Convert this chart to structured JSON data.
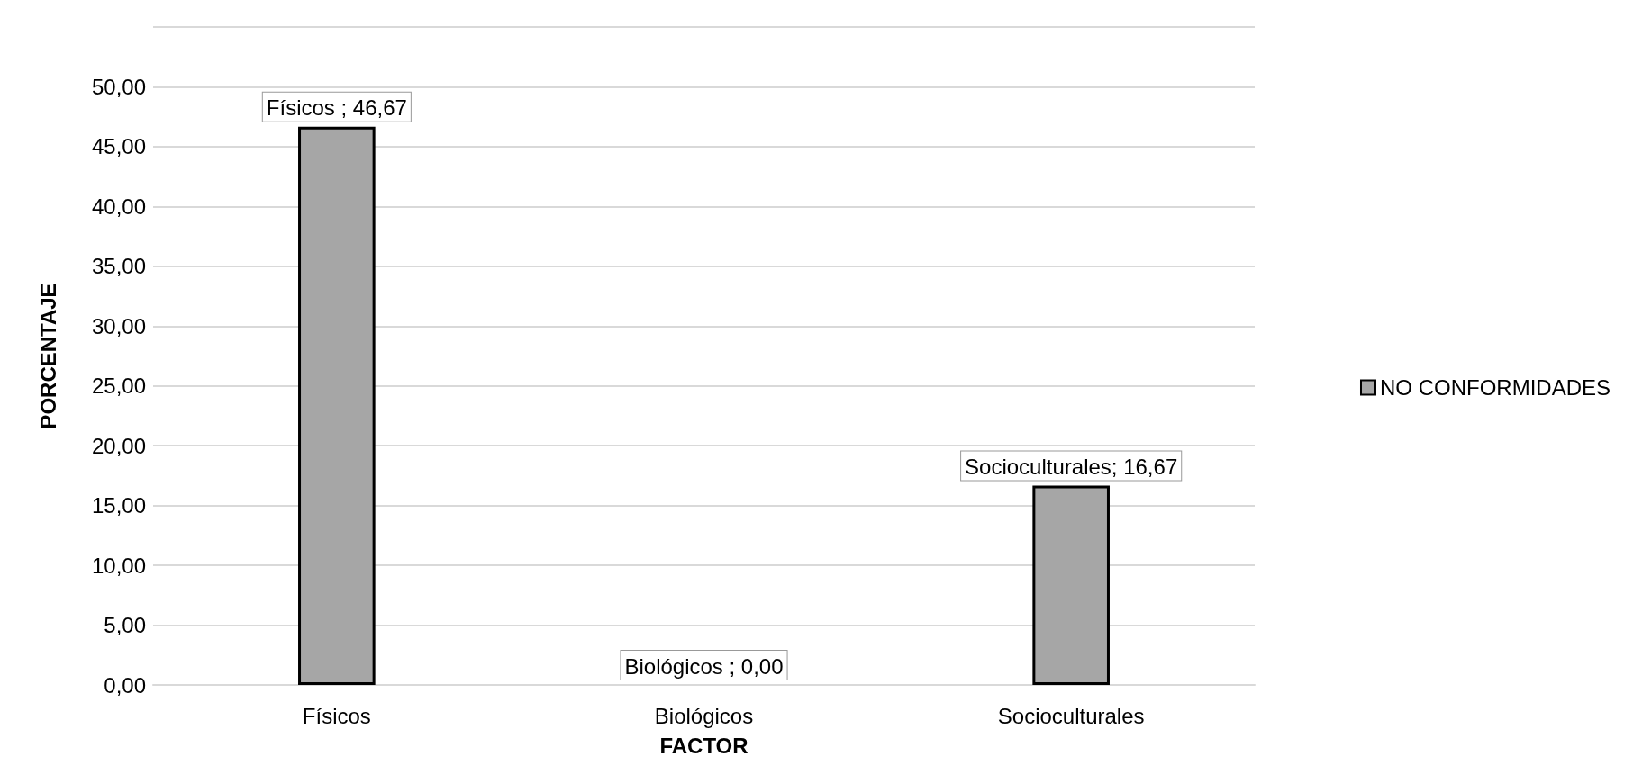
{
  "chart_data": {
    "type": "bar",
    "xlabel": "FACTOR",
    "ylabel": "PORCENTAJE",
    "categories": [
      "Físicos",
      "Biológicos",
      "Socioculturales"
    ],
    "series": [
      {
        "name": "NO CONFORMIDADES",
        "color": "#a6a6a6",
        "values": [
          46.67,
          0,
          16.67
        ],
        "value_labels": [
          "Físicos ; 46,67",
          "Biológicos ; 0,00",
          "Socioculturales; 16,67"
        ]
      }
    ],
    "ylim": [
      0,
      55
    ],
    "yticks": [
      {
        "value": 0,
        "label": "0,00"
      },
      {
        "value": 5,
        "label": "5,00"
      },
      {
        "value": 10,
        "label": "10,00"
      },
      {
        "value": 15,
        "label": "15,00"
      },
      {
        "value": 20,
        "label": "20,00"
      },
      {
        "value": 25,
        "label": "25,00"
      },
      {
        "value": 30,
        "label": "30,00"
      },
      {
        "value": 35,
        "label": "35,00"
      },
      {
        "value": 40,
        "label": "40,00"
      },
      {
        "value": 45,
        "label": "45,00"
      },
      {
        "value": 50,
        "label": "50,00"
      },
      {
        "value": 55,
        "label": null
      }
    ],
    "grid": "y",
    "legend": "right"
  }
}
